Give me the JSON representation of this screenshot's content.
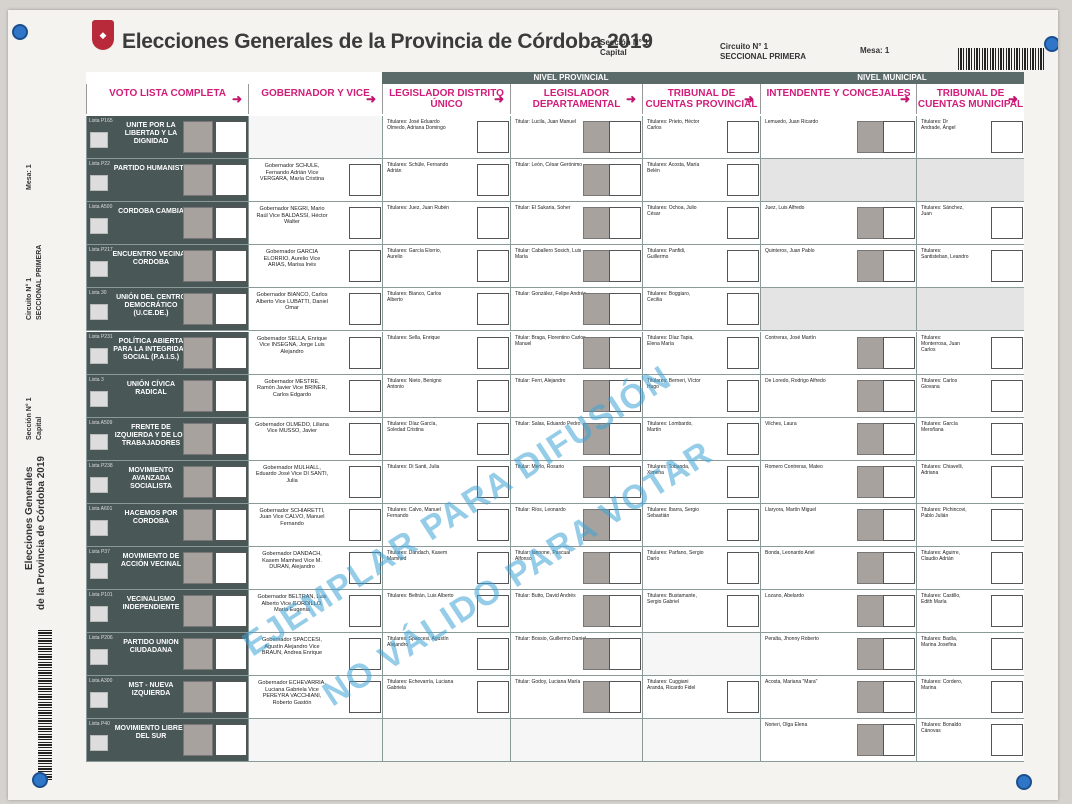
{
  "header": {
    "title": "Elecciones Generales de la Provincia de Córdoba 2019",
    "seccion_label": "Sección N°",
    "seccion_value": "1",
    "seccion_name": "Capital",
    "circuito_label": "Circuito N°",
    "circuito_value": "1",
    "circuito_name": "SECCIONAL PRIMERA",
    "mesa_label": "Mesa:",
    "mesa_value": "1"
  },
  "sidebar": {
    "title_line1": "Elecciones Generales",
    "title_line2": "de la Provincia de Córdoba 2019",
    "seccion": "Sección N°  1",
    "seccion_name": "Capital",
    "circuito": "Circuito N°  1",
    "circuito_name": "SECCIONAL PRIMERA",
    "mesa": "Mesa:  1"
  },
  "bands": {
    "provincial": "NIVEL PROVINCIAL",
    "municipal": "NIVEL MUNICIPAL"
  },
  "columns": [
    {
      "label": "VOTO LISTA COMPLETA"
    },
    {
      "label": "GOBERNADOR Y VICE"
    },
    {
      "label": "LEGISLADOR DISTRITO ÚNICO"
    },
    {
      "label": "LEGISLADOR DEPARTAMENTAL"
    },
    {
      "label": "TRIBUNAL DE CUENTAS PROVINCIAL"
    },
    {
      "label": "INTENDENTE Y CONCEJALES"
    },
    {
      "label": "TRIBUNAL DE CUENTAS MUNICIPAL"
    }
  ],
  "parties": [
    {
      "code": "Lista P165",
      "name": "UNITE POR LA LIBERTAD Y LA DIGNIDAD",
      "gob": "",
      "leg": "Titulares: José Eduardo Olmedo, Adriana Domingo",
      "dep": "Titular: Lucila, Juan Manuel",
      "trib": "Titulares: Prieto, Héctor Carlos",
      "int": "Lemuedo, Juan Ricardo",
      "tcm": "Titulares: Dr Andrade, Ángel"
    },
    {
      "code": "Lista P22",
      "name": "PARTIDO HUMANISTA",
      "gob": "Gobernador SCHULE, Fernando Adrián Vice VERGARA, María Cristina",
      "leg": "Titulares: Schüle, Fernando Adrián",
      "dep": "Titular: León, César Gerónimo",
      "trib": "Titulares: Acosta, María Belén",
      "int": "",
      "tcm": ""
    },
    {
      "code": "Lista A500",
      "name": "CORDOBA CAMBIA",
      "gob": "Gobernador NEGRI, Mario Raúl Vice BALDASSI, Héctor Walter",
      "leg": "Titulares: Juez, Juan Rubén",
      "dep": "Titular: El Sukaria, Soher",
      "trib": "Titulares: Ochoa, Julio César",
      "int": "Juez, Luis Alfredo",
      "tcm": "Titulares: Sánchez, Juan"
    },
    {
      "code": "Lista P217",
      "name": "ENCUENTRO VECINAL CORDOBA",
      "gob": "Gobernador GARCIA ELORRIO, Aurelio Vice ARIAS, Marisa Inés",
      "leg": "Titulares: García Elorrio, Aurelio",
      "dep": "Titular: Caballero Sosich, Luis María",
      "trib": "Titulares: Panfidi, Guillermo",
      "int": "Quinteros, Juan Pablo",
      "tcm": "Titulares: Santisteban, Leandro"
    },
    {
      "code": "Lista 30",
      "name": "UNIÓN DEL CENTRO DEMOCRÁTICO (U.CE.DE.)",
      "gob": "Gobernador BIANCO, Carlos Alberto Vice LUBATTI, Daniel Omar",
      "leg": "Titulares: Bianco, Carlos Alberto",
      "dep": "Titular: González, Felipe Andrés",
      "trib": "Titulares: Boggiaro, Cecilia",
      "int": "",
      "tcm": ""
    },
    {
      "code": "Lista P231",
      "name": "POLÍTICA ABIERTA PARA LA INTEGRIDAD SOCIAL (P.A.I.S.)",
      "gob": "Gobernador SELLA, Enrique Vice INSEGNA, Jorge Luis Alejandro",
      "leg": "Titulares: Sella, Enrique",
      "dep": "Titular: Braga, Florentino Carlos Manuel",
      "trib": "Titulares: Díaz Tapia, Elena María",
      "int": "Contreras, José Martín",
      "tcm": "Titulares: Monterrosa, Juan Carlos"
    },
    {
      "code": "Lista 3",
      "name": "UNIÓN CÍVICA RADICAL",
      "gob": "Gobernador MESTRE, Ramón Javier Vice BRINER, Carlos Edgardo",
      "leg": "Titulares: Nieto, Benigno Antonio",
      "dep": "Titular: Ferri, Alejandro",
      "trib": "Titulares: Berneri, Víctor Hugo",
      "int": "De Loredo, Rodrigo Alfredo",
      "tcm": "Titulares: Carlos Giovana"
    },
    {
      "code": "Lista A509",
      "name": "FRENTE DE IZQUIERDA Y DE LOS TRABAJADORES",
      "gob": "Gobernador OLMEDO, Liliana Vice MUSSO, Javier",
      "leg": "Titulares: Díaz García, Soledad Cristina",
      "dep": "Titular: Salas, Eduardo Pedro",
      "trib": "Titulares: Lombardo, Martín",
      "int": "Vilches, Laura",
      "tcm": "Titulares: García Meroñana"
    },
    {
      "code": "Lista P238",
      "name": "MOVIMIENTO AVANZADA SOCIALISTA",
      "gob": "Gobernador MULHALL, Eduardo José Vice DI SANTI, Julia",
      "leg": "Titulares: Di Santi, Julia",
      "dep": "Titular: Merlo, Rosario",
      "trib": "Titulares: Tobanda, Ximena",
      "int": "Romero Contreras, Mateo",
      "tcm": "Titulares: Chiavelli, Adriana"
    },
    {
      "code": "Lista A601",
      "name": "HACEMOS POR CORDOBA",
      "gob": "Gobernador SCHIARETTI, Juan Vice CALVO, Manuel Fernando",
      "leg": "Titulares: Calvo, Manuel Fernando",
      "dep": "Titular: Ríos, Leonardo",
      "trib": "Titulares: Ibarra, Sergio Sebastián",
      "int": "Llaryora, Martín Miguel",
      "tcm": "Titulares: Pichincovi, Pablo Julián"
    },
    {
      "code": "Lista P37",
      "name": "MOVIMIENTO DE ACCIÓN VECINAL",
      "gob": "Gobernador DANDACH, Kasem Mamhed Vice M. DURAN, Alejandro",
      "leg": "Titulares: Dandach, Kasem Mamhed",
      "dep": "Titular: Iannone, Pascual Alfonso",
      "trib": "Titulares: Parfano, Sergio Darío",
      "int": "Bonda, Leonardo Ariel",
      "tcm": "Titulares: Aguirre, Claudio Adrián"
    },
    {
      "code": "Lista P101",
      "name": "VECINALISMO INDEPENDIENTE",
      "gob": "Gobernador BELTRAN, Luis Alberto Vice GORDILLO, María Eugenia",
      "leg": "Titulares: Beltrán, Luis Alberto",
      "dep": "Titular: Butto, David Andrés",
      "trib": "Titulares: Bustamante, Sergio Gabriel",
      "int": "Lozano, Abelardo",
      "tcm": "Titulares: Castillo, Edith María"
    },
    {
      "code": "Lista P206",
      "name": "PARTIDO UNION CIUDADANA",
      "gob": "Gobernador SPACCESI, Agustín Alejandro Vice BRAUN, Andrea Enrique",
      "leg": "Titulares: Spaccesi, Agustín Alejandro",
      "dep": "Titular: Bossio, Guillermo Daniel",
      "trib": "",
      "int": "Peralta, Jhonny Roberto",
      "tcm": "Titulares: Badía, Marina Josefina"
    },
    {
      "code": "Lista A300",
      "name": "MST - NUEVA IZQUIERDA",
      "gob": "Gobernador ECHEVARRIA, Luciana Gabriela Vice PEREYRA VACCHIANI, Roberto Gastón",
      "leg": "Titulares: Echevarría, Luciana Gabriela",
      "dep": "Titular: Godoy, Luciana María",
      "trib": "Titulares: Cuggiani Aranda, Ricardo Fidel",
      "int": "Acosta, Mariana \"Mara\"",
      "tcm": "Titulares: Cordero, Marina"
    },
    {
      "code": "Lista P40",
      "name": "MOVIMIENTO LIBRES DEL SUR",
      "gob": "",
      "leg": "",
      "dep": "",
      "trib": "",
      "int": "Norieri, Olga Elena",
      "tcm": "Titulares: Bonaldo Cánovas"
    }
  ],
  "watermark": {
    "line1": "EJEMPLAR PARA DIFUSIÓN",
    "line2": "NO VÁLIDO PARA VOTAR"
  },
  "colors": {
    "band": "#5a6b69",
    "party_cell": "#495756",
    "header_text": "#d11d7a",
    "watermark": "#3fa3d6",
    "pin": "#2f76c9"
  }
}
